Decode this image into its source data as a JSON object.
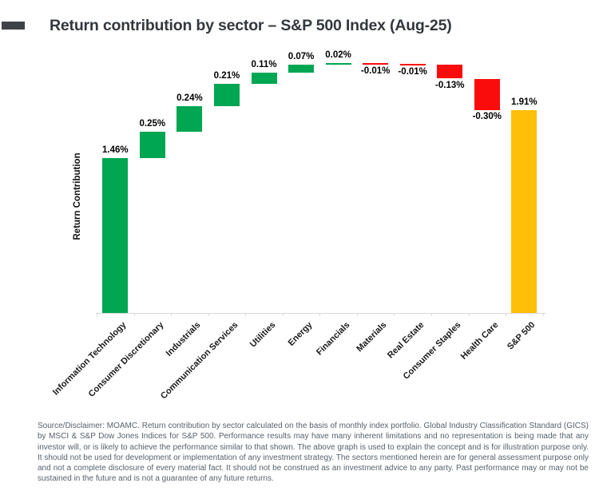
{
  "header": {
    "title": "Return contribution by sector – S&P 500 Index (Aug-25)"
  },
  "chart_data": {
    "type": "bar",
    "subtype": "waterfall",
    "title": "Return contribution by sector – S&P 500 Index (Aug-25)",
    "ylabel": "Return Contribution",
    "xlabel": "",
    "grid": false,
    "legend": false,
    "y_axis_tick_labels": "none",
    "ylim": [
      0,
      2.5
    ],
    "categories": [
      "Information Technology",
      "Consumer Discretionary",
      "Industrials",
      "Communication Services",
      "Utilities",
      "Energy",
      "Financials",
      "Materials",
      "Real Estate",
      "Consumer Staples",
      "Health Care",
      "S&P 500"
    ],
    "values": [
      1.46,
      0.25,
      0.24,
      0.21,
      0.11,
      0.07,
      0.02,
      -0.01,
      -0.01,
      -0.13,
      -0.3,
      1.91
    ],
    "labels": [
      "1.46%",
      "0.25%",
      "0.24%",
      "0.21%",
      "0.11%",
      "0.07%",
      "0.02%",
      "-0.01%",
      "-0.01%",
      "-0.13%",
      "-0.30%",
      "1.91%"
    ],
    "bar_roles": [
      "increase",
      "increase",
      "increase",
      "increase",
      "increase",
      "increase",
      "increase",
      "decrease",
      "decrease",
      "decrease",
      "decrease",
      "total"
    ],
    "colors": {
      "increase": "#00A651",
      "decrease": "#FB0C0C",
      "total": "#FFBE08",
      "axis": "#d9d9d9",
      "title": "#33383e",
      "disclaimer_text": "#57626d"
    }
  },
  "footer": {
    "text": "Source/Disclaimer: MOAMC. Return contribution by sector calculated on the basis of monthly index portfolio. Global Industry Classification Standard (GICS) by MSCI & S&P Dow Jones Indices for S&P 500. Performance results may have many inherent limitations and no representation is being made that any investor will, or is likely to achieve the performance similar to that shown. The above graph is used to explain the concept and is for illustration purpose only. It should not be used for development or implementation of any investment strategy. The sectors mentioned herein are for general assessment purpose only and not a complete disclosure of every material fact. It should not be construed as an investment advice to any party. Past performance may or may not be sustained in the future and is not a guarantee of any future returns."
  }
}
